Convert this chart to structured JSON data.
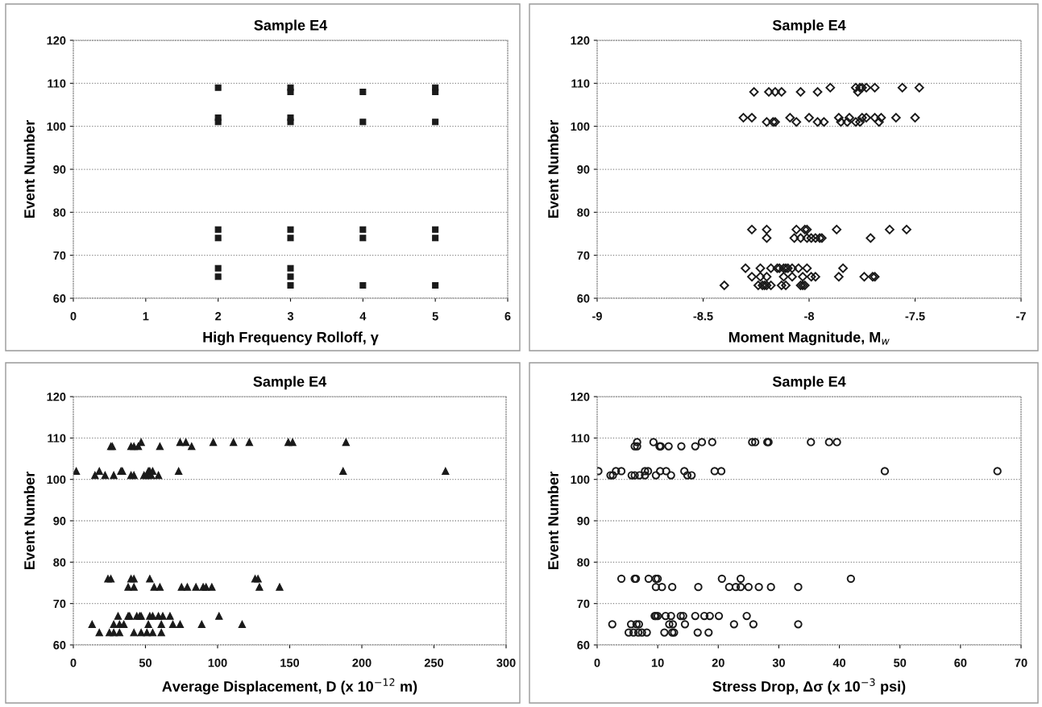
{
  "chart_data": [
    {
      "type": "scatter",
      "title": "Sample E4",
      "xlabel": "High Frequency Rolloff, γ",
      "ylabel": "Event Number",
      "xlim": [
        0,
        6
      ],
      "xticks": [
        0,
        1,
        2,
        3,
        4,
        5,
        6
      ],
      "ylim": [
        60,
        120
      ],
      "yticks": [
        60,
        70,
        80,
        90,
        100,
        110,
        120
      ],
      "grid": "y",
      "marker": "square",
      "series": [
        {
          "color": "#1a1a1a",
          "x": [
            2,
            2,
            2,
            2,
            2,
            2,
            2,
            3,
            3,
            3,
            3,
            3,
            3,
            3,
            3,
            3,
            4,
            4,
            4,
            4,
            4,
            5,
            5,
            5,
            5,
            5,
            5
          ],
          "values": [
            109,
            101,
            102,
            76,
            74,
            67,
            65,
            63,
            108,
            109,
            101,
            102,
            76,
            74,
            67,
            65,
            63,
            108,
            101,
            76,
            74,
            63,
            108,
            109,
            101,
            76,
            74
          ]
        }
      ]
    },
    {
      "type": "scatter",
      "title": "Sample E4",
      "xlabel": "Moment Magnitude, M$_{w}$",
      "ylabel": "Event Number",
      "xlim": [
        -9,
        -7
      ],
      "xticks": [
        -9,
        -8.5,
        -8,
        -7.5,
        -7
      ],
      "ylim": [
        60,
        120
      ],
      "yticks": [
        60,
        70,
        80,
        90,
        100,
        110,
        120
      ],
      "grid": "y",
      "marker": "diamond",
      "series": [
        {
          "color": "#1a1a1a",
          "x": [
            -7.9,
            -7.78,
            -7.76,
            -7.75,
            -7.73,
            -7.69,
            -7.56,
            -7.48,
            -8.26,
            -8.19,
            -8.16,
            -8.13,
            -8.04,
            -7.96,
            -7.77,
            -8.31,
            -8.27,
            -8.09,
            -8.0,
            -7.86,
            -7.81,
            -7.75,
            -7.73,
            -7.69,
            -7.66,
            -7.59,
            -7.5,
            -8.2,
            -8.17,
            -8.16,
            -8.06,
            -7.96,
            -7.93,
            -7.85,
            -7.82,
            -7.78,
            -7.76,
            -7.67,
            -8.27,
            -8.2,
            -8.06,
            -8.02,
            -8.01,
            -7.87,
            -7.62,
            -7.54,
            -8.2,
            -8.07,
            -8.04,
            -8.01,
            -7.99,
            -7.97,
            -7.95,
            -7.94,
            -7.71,
            -8.3,
            -8.23,
            -8.18,
            -8.15,
            -8.14,
            -8.12,
            -8.11,
            -8.1,
            -8.08,
            -8.05,
            -8.01,
            -7.84,
            -8.27,
            -8.23,
            -8.2,
            -8.12,
            -8.08,
            -8.03,
            -7.99,
            -7.97,
            -7.86,
            -7.74,
            -7.7,
            -7.69,
            -8.4,
            -8.24,
            -8.22,
            -8.21,
            -8.2,
            -8.18,
            -8.13,
            -8.11,
            -8.04,
            -8.03,
            -8.02
          ],
          "values": [
            109,
            109,
            109,
            109,
            109,
            109,
            109,
            109,
            108,
            108,
            108,
            108,
            108,
            108,
            108,
            102,
            102,
            102,
            102,
            102,
            102,
            102,
            102,
            102,
            102,
            102,
            102,
            101,
            101,
            101,
            101,
            101,
            101,
            101,
            101,
            101,
            101,
            101,
            76,
            76,
            76,
            76,
            76,
            76,
            76,
            76,
            74,
            74,
            74,
            74,
            74,
            74,
            74,
            74,
            74,
            67,
            67,
            67,
            67,
            67,
            67,
            67,
            67,
            67,
            67,
            67,
            67,
            65,
            65,
            65,
            65,
            65,
            65,
            65,
            65,
            65,
            65,
            65,
            65,
            63,
            63,
            63,
            63,
            63,
            63,
            63,
            63,
            63,
            63,
            63
          ]
        }
      ]
    },
    {
      "type": "scatter",
      "title": "Sample E4",
      "xlabel": "Average Displacement, D (x 10$^{−12}$ m)",
      "ylabel": "Event Number",
      "xlim": [
        0,
        300
      ],
      "xticks": [
        0,
        50,
        100,
        150,
        200,
        250,
        300
      ],
      "ylim": [
        60,
        120
      ],
      "yticks": [
        60,
        70,
        80,
        90,
        100,
        110,
        120
      ],
      "grid": "y",
      "marker": "triangle",
      "series": [
        {
          "color": "#1a1a1a",
          "x": [
            47,
            74,
            78,
            97,
            111,
            122,
            149,
            152,
            189,
            26,
            27,
            40,
            42,
            45,
            60,
            82,
            2,
            18,
            33,
            34,
            52,
            53,
            55,
            73,
            187,
            258,
            15,
            22,
            28,
            40,
            42,
            49,
            51,
            54,
            59,
            24,
            26,
            40,
            42,
            53,
            126,
            128,
            38,
            42,
            56,
            60,
            75,
            79,
            85,
            90,
            92,
            96,
            129,
            143,
            31,
            38,
            39,
            44,
            46,
            47,
            53,
            55,
            59,
            62,
            67,
            101,
            13,
            28,
            32,
            35,
            52,
            61,
            69,
            74,
            89,
            117,
            18,
            25,
            28,
            32,
            42,
            47,
            51,
            55,
            61
          ],
          "values": [
            109,
            109,
            109,
            109,
            109,
            109,
            109,
            109,
            109,
            108,
            108,
            108,
            108,
            108,
            108,
            108,
            102,
            102,
            102,
            102,
            102,
            102,
            102,
            102,
            102,
            102,
            101,
            101,
            101,
            101,
            101,
            101,
            101,
            101,
            101,
            76,
            76,
            76,
            76,
            76,
            76,
            76,
            74,
            74,
            74,
            74,
            74,
            74,
            74,
            74,
            74,
            74,
            74,
            74,
            67,
            67,
            67,
            67,
            67,
            67,
            67,
            67,
            67,
            67,
            67,
            67,
            65,
            65,
            65,
            65,
            65,
            65,
            65,
            65,
            65,
            65,
            63,
            63,
            63,
            63,
            63,
            63,
            63,
            63,
            63
          ]
        }
      ]
    },
    {
      "type": "scatter",
      "title": "Sample E4",
      "xlabel": "Stress Drop, Δσ (x 10$^{−3}$ psi)",
      "ylabel": "Event Number",
      "xlim": [
        0,
        70
      ],
      "xticks": [
        0,
        10,
        20,
        30,
        40,
        50,
        60,
        70
      ],
      "ylim": [
        60,
        120
      ],
      "yticks": [
        60,
        70,
        80,
        90,
        100,
        110,
        120
      ],
      "grid": "y",
      "marker": "circle",
      "series": [
        {
          "color": "#1a1a1a",
          "x": [
            6.6,
            9.3,
            17.3,
            19.0,
            25.6,
            26.1,
            28.1,
            28.3,
            35.3,
            38.3,
            39.6,
            6.2,
            6.6,
            10.3,
            10.5,
            11.8,
            13.9,
            16.2,
            0.2,
            3.1,
            4.0,
            7.9,
            8.4,
            10.4,
            11.4,
            14.4,
            19.4,
            20.5,
            47.5,
            66.1,
            2.2,
            2.6,
            5.7,
            6.2,
            7.0,
            7.9,
            9.7,
            12.2,
            14.9,
            15.6,
            4.0,
            6.2,
            6.4,
            8.5,
            9.7,
            10.0,
            20.6,
            23.7,
            41.9,
            9.7,
            10.7,
            12.4,
            16.7,
            21.8,
            22.9,
            23.7,
            25.0,
            26.7,
            28.7,
            33.2,
            9.5,
            9.7,
            10.0,
            11.3,
            12.2,
            13.8,
            14.2,
            16.2,
            17.7,
            18.6,
            20.1,
            24.7,
            2.5,
            5.6,
            6.5,
            6.9,
            11.9,
            12.5,
            14.5,
            22.6,
            25.8,
            33.2,
            5.2,
            6.0,
            6.8,
            7.4,
            8.2,
            11.1,
            12.4,
            12.7,
            16.6,
            18.4
          ],
          "values": [
            109,
            109,
            109,
            109,
            109,
            109,
            109,
            109,
            109,
            109,
            109,
            108,
            108,
            108,
            108,
            108,
            108,
            108,
            102,
            102,
            102,
            102,
            102,
            102,
            102,
            102,
            102,
            102,
            102,
            102,
            101,
            101,
            101,
            101,
            101,
            101,
            101,
            101,
            101,
            101,
            76,
            76,
            76,
            76,
            76,
            76,
            76,
            76,
            76,
            74,
            74,
            74,
            74,
            74,
            74,
            74,
            74,
            74,
            74,
            74,
            67,
            67,
            67,
            67,
            67,
            67,
            67,
            67,
            67,
            67,
            67,
            67,
            65,
            65,
            65,
            65,
            65,
            65,
            65,
            65,
            65,
            65,
            63,
            63,
            63,
            63,
            63,
            63,
            63,
            63,
            63,
            63
          ]
        }
      ]
    }
  ]
}
